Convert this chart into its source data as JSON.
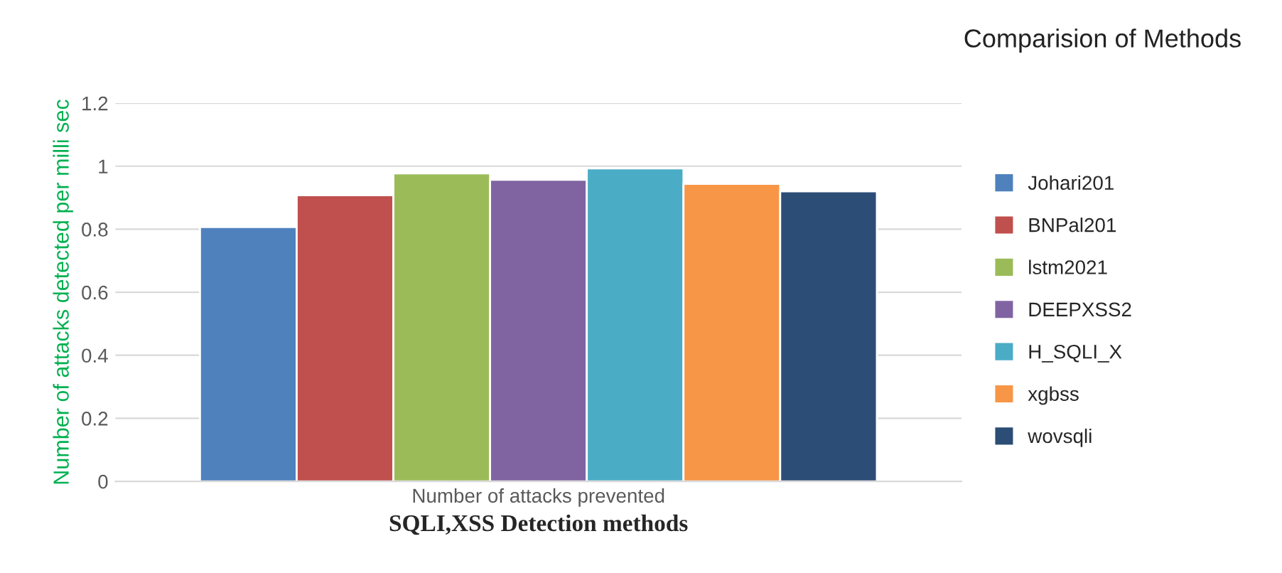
{
  "chart_data": {
    "type": "bar",
    "title": "Comparision of Methods",
    "xlabel": "SQLI,XSS Detection methods",
    "ylabel": "Number of attacks detected per milli sec",
    "categories": [
      "Number of attacks prevented"
    ],
    "series": [
      {
        "name": "Johari201",
        "color": "#4f81bd",
        "values": [
          0.807
        ]
      },
      {
        "name": "BNPal201",
        "color": "#c0504d",
        "values": [
          0.908
        ]
      },
      {
        "name": "lstm2021",
        "color": "#9bbb59",
        "values": [
          0.977
        ]
      },
      {
        "name": "DEEPXSS2",
        "color": "#8064a2",
        "values": [
          0.957
        ]
      },
      {
        "name": "H_SQLI_X",
        "color": "#4bacc6",
        "values": [
          0.993
        ]
      },
      {
        "name": "xgbss",
        "color": "#f79646",
        "values": [
          0.944
        ]
      },
      {
        "name": "wovsqli",
        "color": "#2c4d75",
        "values": [
          0.92
        ]
      }
    ],
    "ylim": [
      0,
      1.2
    ],
    "yticks": [
      0,
      0.2,
      0.4,
      0.6,
      0.8,
      1,
      1.2
    ],
    "grid": "y",
    "legend": "right"
  }
}
